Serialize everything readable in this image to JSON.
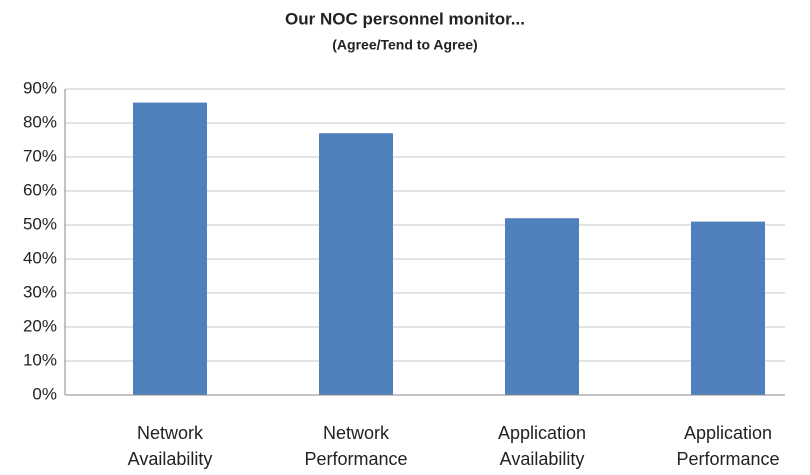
{
  "chart_data": {
    "type": "bar",
    "title": "Our NOC personnel monitor...",
    "subtitle": "(Agree/Tend to Agree)",
    "categories": [
      "Network Availability",
      "Network Performance",
      "Application Availability",
      "Application Performance"
    ],
    "values": [
      86,
      77,
      52,
      51
    ],
    "color": "#4f81bd",
    "ylim": [
      0,
      90
    ],
    "yticks": [
      {
        "value": 0,
        "label": "0%"
      },
      {
        "value": 10,
        "label": "10%"
      },
      {
        "value": 20,
        "label": "20%"
      },
      {
        "value": 30,
        "label": "30%"
      },
      {
        "value": 40,
        "label": "40%"
      },
      {
        "value": 50,
        "label": "50%"
      },
      {
        "value": 60,
        "label": "60%"
      },
      {
        "value": 70,
        "label": "70%"
      },
      {
        "value": 80,
        "label": "80%"
      },
      {
        "value": 90,
        "label": "90%"
      }
    ],
    "grid": true
  }
}
